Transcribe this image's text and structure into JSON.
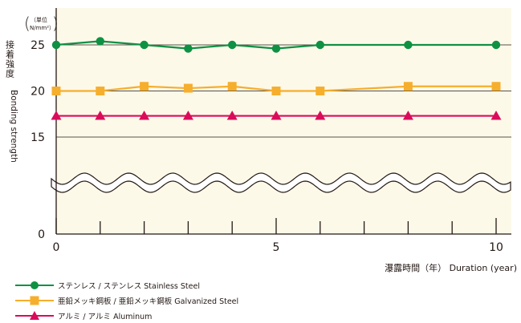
{
  "chart_data": {
    "type": "line",
    "ylabel_jp": "接着強度",
    "ylabel_en": "Bonding strength",
    "unit": [
      "（単位",
      "N/mm²）"
    ],
    "xlabel": "瀑露時間（年） Duration (year)",
    "x_ticks": [
      "0",
      "5",
      "10"
    ],
    "y_ticks": [
      "0",
      "15",
      "20",
      "25"
    ],
    "xlim": [
      0,
      10
    ],
    "ylim_upper": [
      15,
      26
    ],
    "axis_break": true,
    "grid": "horizontal",
    "legend_position": "bottom-left",
    "series": [
      {
        "name": "ステンレス / ステンレス  Stainless Steel",
        "color": "#0f9144",
        "marker": "circle",
        "x": [
          0,
          1,
          2,
          3,
          4,
          5,
          6,
          8,
          10
        ],
        "y": [
          25,
          25.4,
          25,
          24.6,
          25,
          24.6,
          25,
          25,
          25
        ]
      },
      {
        "name": "亜鉛メッキ鋼板 / 亜鉛メッキ鋼板  Galvanized Steel",
        "color": "#f6ae2d",
        "marker": "square",
        "x": [
          0,
          1,
          2,
          3,
          4,
          5,
          6,
          8,
          10
        ],
        "y": [
          20,
          20,
          20.5,
          20.3,
          20.5,
          20,
          20,
          20.5,
          20.5
        ]
      },
      {
        "name": "アルミ / アルミ  Aluminum",
        "color": "#db0b5b",
        "marker": "triangle",
        "x": [
          0,
          1,
          2,
          3,
          4,
          5,
          6,
          8,
          10
        ],
        "y": [
          17.3,
          17.3,
          17.3,
          17.3,
          17.3,
          17.3,
          17.3,
          17.3,
          17.3
        ]
      }
    ],
    "colors": {
      "plot_background": "#fdf9e9",
      "axis": "#231815"
    }
  }
}
